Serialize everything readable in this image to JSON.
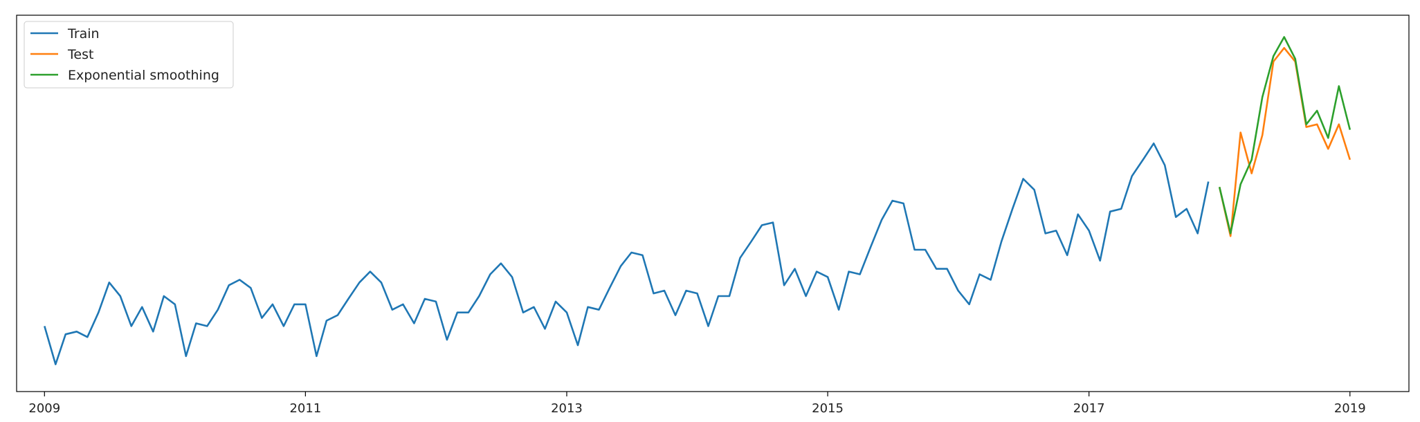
{
  "chart_data": {
    "type": "line",
    "title": "",
    "xlabel": "",
    "ylabel": "",
    "x_axis": {
      "type": "date",
      "ticks": [
        "2009",
        "2011",
        "2013",
        "2015",
        "2017",
        "2019"
      ],
      "range": [
        "2008-10-15",
        "2019-06-15"
      ]
    },
    "y_axis": {
      "tick_labels_shown": false,
      "range": [
        -0.38,
        1.0
      ]
    },
    "grid": false,
    "legend": {
      "position": "top-left",
      "entries": [
        "Train",
        "Test",
        "Exponential smoothing"
      ]
    },
    "series": [
      {
        "name": "Train",
        "color": "#1f77b4",
        "start": "2009-01",
        "values": [
          -0.14,
          -0.28,
          -0.17,
          -0.16,
          -0.18,
          -0.09,
          0.02,
          -0.03,
          -0.14,
          -0.07,
          -0.16,
          -0.03,
          -0.06,
          -0.25,
          -0.13,
          -0.14,
          -0.08,
          0.01,
          0.03,
          0.0,
          -0.11,
          -0.06,
          -0.14,
          -0.06,
          -0.06,
          -0.25,
          -0.12,
          -0.1,
          -0.04,
          0.02,
          0.06,
          0.02,
          -0.08,
          -0.06,
          -0.13,
          -0.04,
          -0.05,
          -0.19,
          -0.09,
          -0.09,
          -0.03,
          0.05,
          0.09,
          0.04,
          -0.09,
          -0.07,
          -0.15,
          -0.05,
          -0.09,
          -0.21,
          -0.07,
          -0.08,
          0.0,
          0.08,
          0.13,
          0.12,
          -0.02,
          -0.01,
          -0.1,
          -0.01,
          -0.02,
          -0.14,
          -0.03,
          -0.03,
          0.11,
          0.17,
          0.23,
          0.24,
          0.01,
          0.07,
          -0.03,
          0.06,
          0.04,
          -0.08,
          0.06,
          0.05,
          0.15,
          0.25,
          0.32,
          0.31,
          0.14,
          0.14,
          0.07,
          0.07,
          -0.01,
          -0.06,
          0.05,
          0.03,
          0.17,
          0.29,
          0.4,
          0.36,
          0.2,
          0.21,
          0.12,
          0.27,
          0.21,
          0.1,
          0.28,
          0.29,
          0.41,
          0.47,
          0.53,
          0.45,
          0.26,
          0.29,
          0.2,
          0.39
        ],
        "end": "2017-12"
      },
      {
        "name": "Test",
        "color": "#ff7f0e",
        "start": "2018-01",
        "values": [
          0.37,
          0.19,
          0.57,
          0.42,
          0.56,
          0.83,
          0.88,
          0.83,
          0.59,
          0.6,
          0.51,
          0.6,
          0.47
        ]
      },
      {
        "name": "Exponential smoothing",
        "color": "#2ca02c",
        "start": "2018-01",
        "values": [
          0.37,
          0.2,
          0.38,
          0.47,
          0.7,
          0.85,
          0.92,
          0.84,
          0.6,
          0.65,
          0.55,
          0.74,
          0.58
        ]
      }
    ]
  }
}
